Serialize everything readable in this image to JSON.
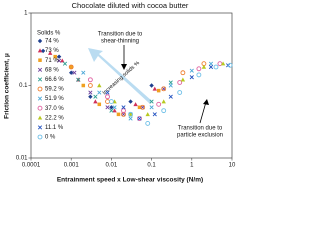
{
  "chart_data": {
    "type": "scatter",
    "title": "Chocolate diluted with cocoa butter",
    "x_label": "Entrainment speed x Low-shear viscosity (N/m)",
    "y_label": "Friction coefficient, μ",
    "log_x": true,
    "log_y": true,
    "xlim": [
      0.0001,
      10
    ],
    "xticks": [
      0.0001,
      0.001,
      0.01,
      0.1,
      1,
      10
    ],
    "ylim": [
      0.01,
      1
    ],
    "yticks": [
      0.01,
      0.1,
      1
    ],
    "legend_title": "Solids %",
    "annotations": {
      "shear": [
        "Transition due to",
        "shear-thinning"
      ],
      "solids": "Increasing solids %",
      "exclusion": [
        "Transition due to",
        "particle exclusion"
      ]
    },
    "series": [
      {
        "name": "74 %",
        "color": "#1f3f8f",
        "marker": "diamond",
        "x": [
          0.0002,
          0.0005,
          0.001,
          0.003,
          0.01,
          0.03,
          0.1
        ],
        "values": [
          0.3,
          0.25,
          0.15,
          0.07,
          0.05,
          0.06,
          0.1
        ]
      },
      {
        "name": "73 %",
        "color": "#d0305a",
        "marker": "triangle",
        "x": [
          0.0003,
          0.0006,
          0.0015,
          0.004,
          0.012,
          0.04,
          0.12
        ],
        "values": [
          0.28,
          0.22,
          0.12,
          0.06,
          0.045,
          0.055,
          0.09
        ]
      },
      {
        "name": "71 %",
        "color": "#f0a020",
        "marker": "square",
        "x": [
          0.0004,
          0.001,
          0.002,
          0.005,
          0.015,
          0.05,
          0.15
        ],
        "values": [
          0.25,
          0.18,
          0.1,
          0.055,
          0.04,
          0.05,
          0.085
        ]
      },
      {
        "name": "68 %",
        "color": "#6a3d9a",
        "marker": "x",
        "x": [
          0.0005,
          0.0012,
          0.003,
          0.008,
          0.02,
          0.06,
          0.2
        ],
        "values": [
          0.22,
          0.15,
          0.08,
          0.05,
          0.04,
          0.05,
          0.09
        ]
      },
      {
        "name": "66.6 %",
        "color": "#2a9d8f",
        "marker": "x",
        "x": [
          0.0007,
          0.0015,
          0.004,
          0.01,
          0.03,
          0.1,
          0.3
        ],
        "values": [
          0.2,
          0.12,
          0.07,
          0.045,
          0.04,
          0.06,
          0.11
        ]
      },
      {
        "name": "59.2 %",
        "color": "#f08030",
        "marker": "circle",
        "x": [
          0.001,
          0.003,
          0.008,
          0.02,
          0.06,
          0.2,
          0.6,
          2
        ],
        "values": [
          0.18,
          0.1,
          0.06,
          0.04,
          0.05,
          0.09,
          0.15,
          0.2
        ]
      },
      {
        "name": "51.9 %",
        "color": "#4aa8d8",
        "marker": "x",
        "x": [
          0.002,
          0.005,
          0.012,
          0.03,
          0.1,
          0.3,
          1,
          3
        ],
        "values": [
          0.15,
          0.08,
          0.05,
          0.035,
          0.05,
          0.1,
          0.16,
          0.2
        ]
      },
      {
        "name": "37.0 %",
        "color": "#e060a0",
        "marker": "circle",
        "x": [
          0.003,
          0.008,
          0.02,
          0.05,
          0.15,
          0.5,
          1.5,
          5
        ],
        "values": [
          0.12,
          0.07,
          0.045,
          0.035,
          0.055,
          0.11,
          0.17,
          0.2
        ]
      },
      {
        "name": "22.2 %",
        "color": "#b8c820",
        "marker": "triangle",
        "x": [
          0.005,
          0.012,
          0.03,
          0.08,
          0.2,
          0.6,
          2,
          6
        ],
        "values": [
          0.1,
          0.06,
          0.04,
          0.04,
          0.06,
          0.12,
          0.18,
          0.2
        ]
      },
      {
        "name": "11.1 %",
        "color": "#2050c0",
        "marker": "x",
        "x": [
          0.008,
          0.02,
          0.05,
          0.12,
          0.3,
          1,
          3,
          8
        ],
        "values": [
          0.08,
          0.05,
          0.035,
          0.04,
          0.07,
          0.13,
          0.18,
          0.19
        ]
      },
      {
        "name": "0 %",
        "color": "#70c0e8",
        "marker": "circle",
        "x": [
          0.01,
          0.03,
          0.08,
          0.2,
          0.5,
          1.5,
          4,
          9
        ],
        "values": [
          0.06,
          0.04,
          0.03,
          0.045,
          0.08,
          0.14,
          0.18,
          0.19
        ]
      }
    ]
  }
}
